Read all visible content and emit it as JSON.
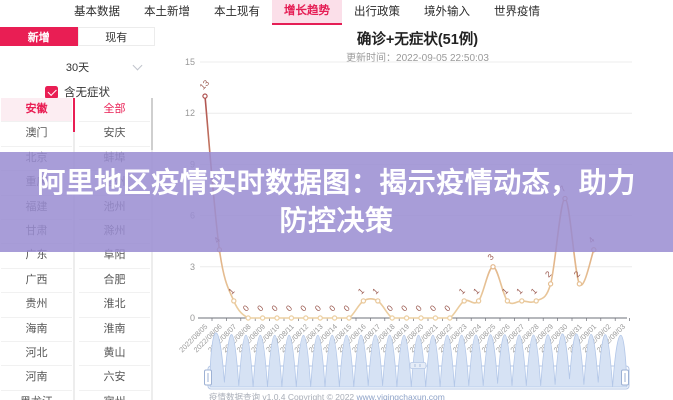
{
  "nav": {
    "tabs": [
      {
        "label": "基本数据",
        "active": false
      },
      {
        "label": "本土新增",
        "active": false
      },
      {
        "label": "本土现有",
        "active": false
      },
      {
        "label": "增长趋势",
        "active": true
      },
      {
        "label": "出行政策",
        "active": false
      },
      {
        "label": "境外输入",
        "active": false
      },
      {
        "label": "世界疫情",
        "active": false
      }
    ]
  },
  "sidebar": {
    "mode_tabs": [
      {
        "label": "新增",
        "active": true
      },
      {
        "label": "现有",
        "active": false
      }
    ],
    "period": "30天",
    "checkbox_label": "含无症状",
    "checkbox_checked": true,
    "provinces": [
      {
        "label": "安徽",
        "selected": true
      },
      {
        "label": "澳门",
        "selected": false
      },
      {
        "label": "北京",
        "selected": false
      },
      {
        "label": "重庆",
        "selected": false
      },
      {
        "label": "福建",
        "selected": false
      },
      {
        "label": "甘肃",
        "selected": false
      },
      {
        "label": "广东",
        "selected": false
      },
      {
        "label": "广西",
        "selected": false
      },
      {
        "label": "贵州",
        "selected": false
      },
      {
        "label": "海南",
        "selected": false
      },
      {
        "label": "河北",
        "selected": false
      },
      {
        "label": "河南",
        "selected": false
      },
      {
        "label": "黑龙江",
        "selected": false
      }
    ],
    "cities": [
      {
        "label": "全部",
        "selected": true
      },
      {
        "label": "安庆",
        "selected": false
      },
      {
        "label": "蚌埠",
        "selected": false
      },
      {
        "label": "亳州",
        "selected": false
      },
      {
        "label": "池州",
        "selected": false
      },
      {
        "label": "滁州",
        "selected": false
      },
      {
        "label": "阜阳",
        "selected": false
      },
      {
        "label": "合肥",
        "selected": false
      },
      {
        "label": "淮北",
        "selected": false
      },
      {
        "label": "淮南",
        "selected": false
      },
      {
        "label": "黄山",
        "selected": false
      },
      {
        "label": "六安",
        "selected": false
      },
      {
        "label": "宿州",
        "selected": false
      }
    ]
  },
  "overlay": {
    "title": "阿里地区疫情实时数据图：揭示疫情动态，助力防控决策"
  },
  "chart_data": {
    "type": "line",
    "title": "确诊+无症状(51例)",
    "subtitle": "更新时间：2022-09-05 22:50:03",
    "x": [
      "2022/08/05",
      "2022/08/06",
      "2022/08/07",
      "2022/08/08",
      "2022/08/09",
      "2022/08/10",
      "2022/08/11",
      "2022/08/12",
      "2022/08/13",
      "2022/08/14",
      "2022/08/15",
      "2022/08/16",
      "2022/08/17",
      "2022/08/18",
      "2022/08/19",
      "2022/08/20",
      "2022/08/21",
      "2022/08/22",
      "2022/08/23",
      "2022/08/24",
      "2022/08/25",
      "2022/08/26",
      "2022/08/27",
      "2022/08/28",
      "2022/08/29",
      "2022/08/30",
      "2022/08/31",
      "2022/09/01",
      "2022/09/02",
      "2022/09/03"
    ],
    "values": [
      13,
      4,
      1,
      0,
      0,
      0,
      0,
      0,
      0,
      0,
      0,
      1,
      1,
      0,
      0,
      0,
      0,
      0,
      1,
      1,
      3,
      1,
      1,
      1,
      2,
      7,
      2,
      4,
      null,
      null
    ],
    "yticks": [
      0,
      3,
      6,
      9,
      12,
      15
    ],
    "ylim": [
      0,
      15
    ],
    "grid": true,
    "smooth": true,
    "legend": "none",
    "line_gradient_high": "#a23c46",
    "line_gradient_low": "#ecd0a2",
    "label_color": "#9b5a50",
    "axis_color": "#6e7079",
    "tick_label_color": "#999999"
  },
  "datazoom": {
    "present": true,
    "fill": "#d6e2f4",
    "border": "#b6c7e5"
  },
  "footer": {
    "text": "疫情数据查询 v1.0.4 Copyright © 2022 ",
    "link": "www.yiqingchaxun.com"
  },
  "colors": {
    "accent": "#e91e54",
    "tab_active_bg": "#fbdfe9",
    "overlay_bg": "rgba(154,141,210,0.86)",
    "selected_row_bg": "#fcedf2"
  }
}
